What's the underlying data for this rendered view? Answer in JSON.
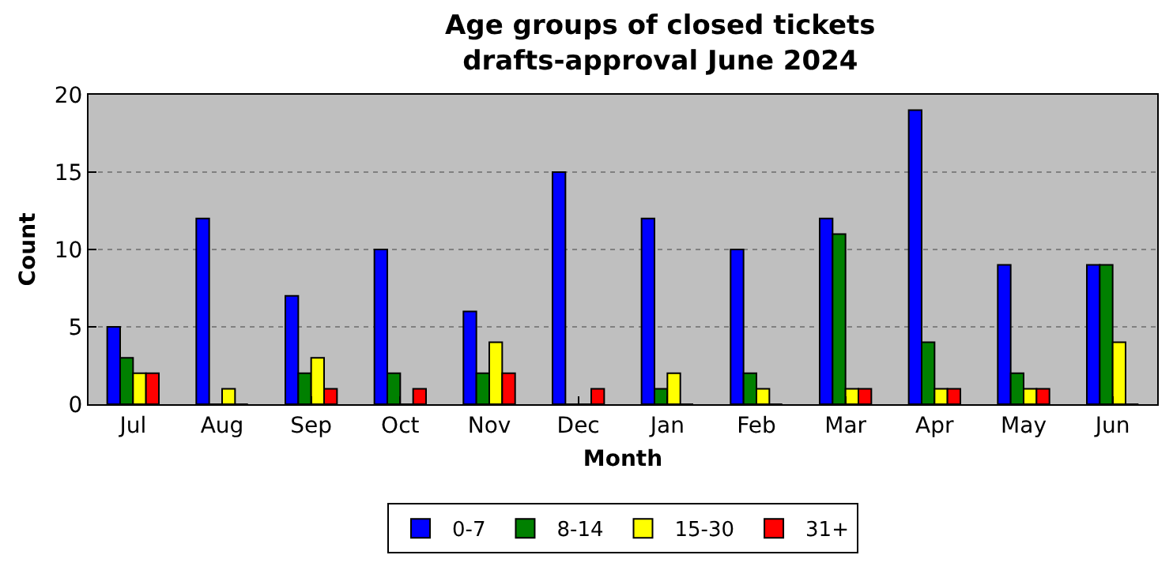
{
  "chart_data": {
    "type": "bar",
    "title": "Age groups of closed tickets\ndrafts-approval June 2024",
    "xlabel": "Month",
    "ylabel": "Count",
    "categories": [
      "Jul",
      "Aug",
      "Sep",
      "Oct",
      "Nov",
      "Dec",
      "Jan",
      "Feb",
      "Mar",
      "Apr",
      "May",
      "Jun"
    ],
    "series": [
      {
        "name": "0-7",
        "color": "#0000ff",
        "values": [
          5,
          12,
          7,
          10,
          6,
          15,
          12,
          10,
          12,
          19,
          9,
          9
        ]
      },
      {
        "name": "8-14",
        "color": "#008000",
        "values": [
          3,
          0,
          2,
          2,
          2,
          0,
          1,
          2,
          11,
          4,
          2,
          9
        ]
      },
      {
        "name": "15-30",
        "color": "#ffff00",
        "values": [
          2,
          1,
          3,
          0,
          4,
          0,
          2,
          1,
          1,
          1,
          1,
          4
        ]
      },
      {
        "name": "31+",
        "color": "#ff0000",
        "values": [
          2,
          0,
          1,
          1,
          2,
          1,
          0,
          0,
          1,
          1,
          1,
          0
        ]
      }
    ],
    "ylim": [
      0,
      20
    ],
    "yticks": [
      0,
      5,
      10,
      15,
      20
    ],
    "grid": "y",
    "legend": "bottom"
  }
}
